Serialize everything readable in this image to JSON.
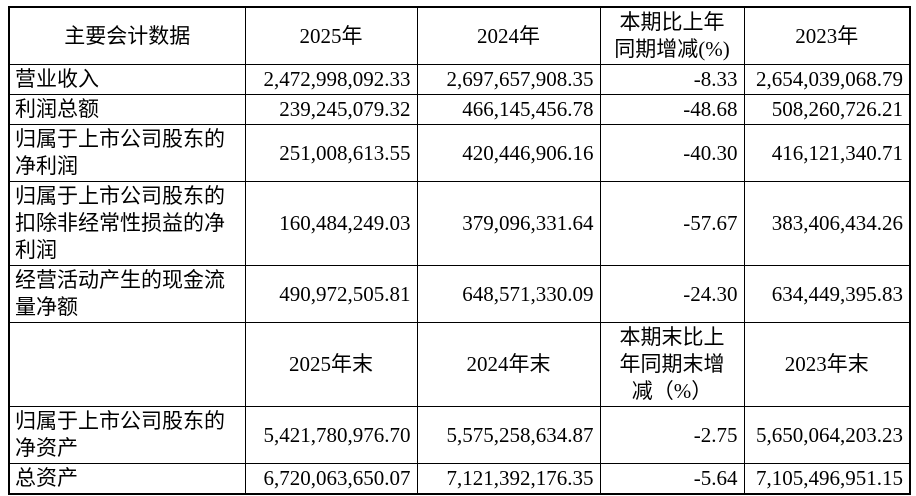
{
  "table": {
    "header_primary": {
      "metric": "主要会计数据",
      "y2025": "2025年",
      "y2024": "2024年",
      "change": "本期比上年\n同期增减(%)",
      "y2023": "2023年"
    },
    "rows_period": [
      {
        "label": "营业收入",
        "v2025": "2,472,998,092.33",
        "v2024": "2,697,657,908.35",
        "change": "-8.33",
        "v2023": "2,654,039,068.79"
      },
      {
        "label": "利润总额",
        "v2025": "239,245,079.32",
        "v2024": "466,145,456.78",
        "change": "-48.68",
        "v2023": "508,260,726.21"
      },
      {
        "label": "归属于上市公司股东的\n净利润",
        "v2025": "251,008,613.55",
        "v2024": "420,446,906.16",
        "change": "-40.30",
        "v2023": "416,121,340.71"
      },
      {
        "label": "归属于上市公司股东的\n扣除非经常性损益的净\n利润",
        "v2025": "160,484,249.03",
        "v2024": "379,096,331.64",
        "change": "-57.67",
        "v2023": "383,406,434.26"
      },
      {
        "label": "经营活动产生的现金流\n量净额",
        "v2025": "490,972,505.81",
        "v2024": "648,571,330.09",
        "change": "-24.30",
        "v2023": "634,449,395.83"
      }
    ],
    "header_secondary": {
      "metric": "",
      "y2025": "2025年末",
      "y2024": "2024年末",
      "change": "本期末比上\n年同期末增\n减（%）",
      "y2023": "2023年末"
    },
    "rows_endpoint": [
      {
        "label": "归属于上市公司股东的\n净资产",
        "v2025": "5,421,780,976.70",
        "v2024": "5,575,258,634.87",
        "change": "-2.75",
        "v2023": "5,650,064,203.23"
      },
      {
        "label": "总资产",
        "v2025": "6,720,063,650.07",
        "v2024": "7,121,392,176.35",
        "change": "-5.64",
        "v2023": "7,105,496,951.15"
      }
    ],
    "colors": {
      "border": "#000000",
      "text": "#000000",
      "background": "#ffffff"
    }
  }
}
